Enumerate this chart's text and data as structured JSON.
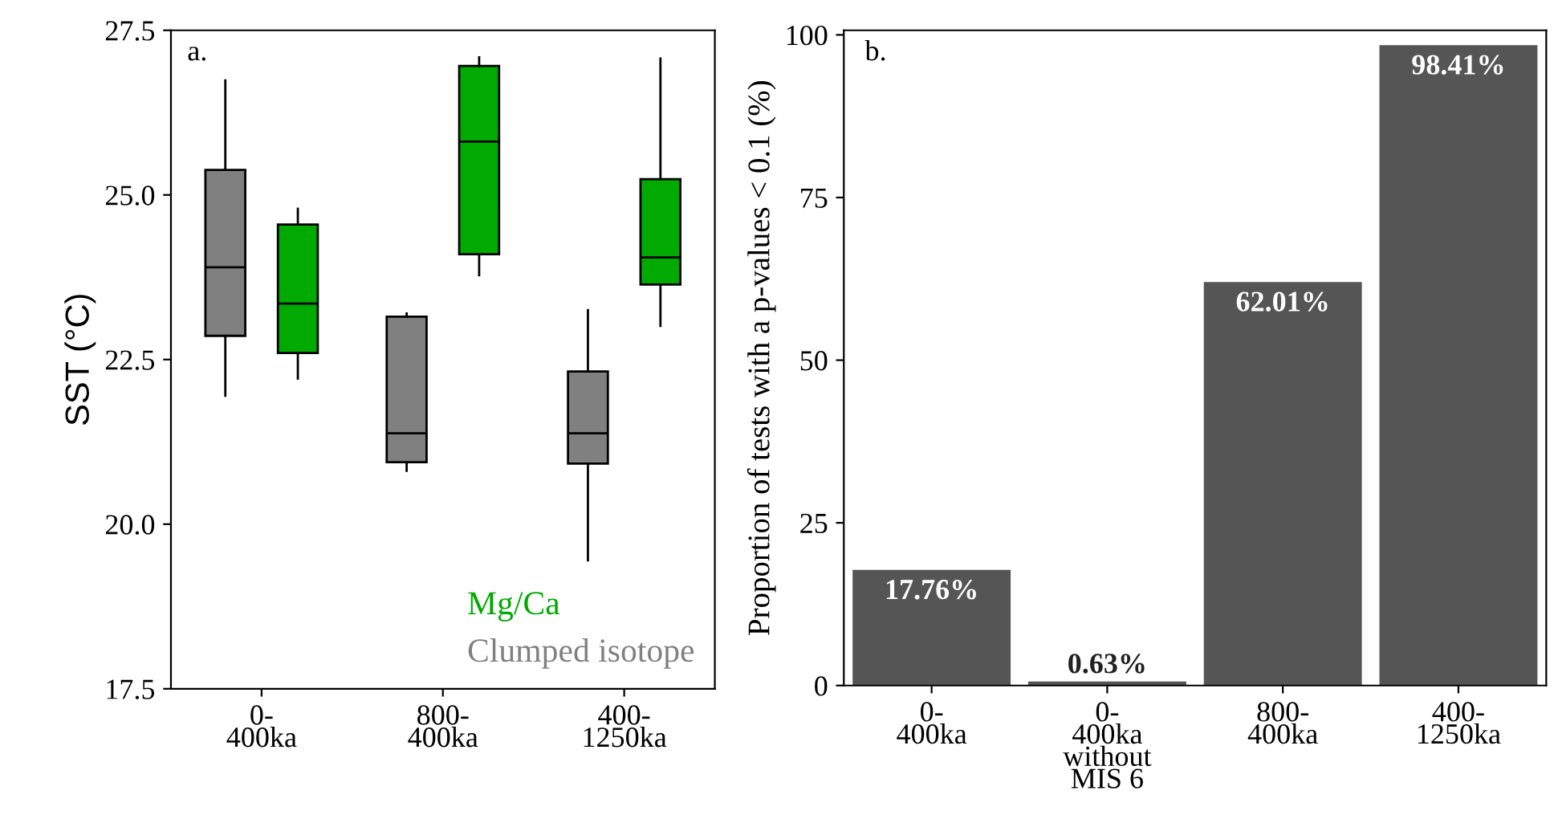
{
  "chart_data": [
    {
      "type": "box",
      "ylabel": "SST (°C)",
      "categories": [
        "0-\n400ka",
        "800-\n400ka",
        "400-\n1250ka"
      ],
      "ylim": [
        17.5,
        27.5
      ],
      "yticks": [
        {
          "value": 17.5,
          "label": "17.5"
        },
        {
          "value": 20,
          "label": "20.0"
        },
        {
          "value": 22.5,
          "label": "22.5"
        },
        {
          "value": 25,
          "label": "25.0"
        },
        {
          "value": 27.5,
          "label": "27.5"
        }
      ],
      "legend": "bottom right",
      "grid": false,
      "annotations": [
        "a."
      ],
      "series": [
        {
          "name": "Clumped isotope",
          "color": "#808080",
          "boxes": [
            {
              "low": 21.95,
              "q1": 22.86,
              "median": 23.9,
              "q3": 25.38,
              "high": 26.74
            },
            {
              "low": 20.81,
              "q1": 20.94,
              "median": 21.38,
              "q3": 23.15,
              "high": 23.2
            },
            {
              "low": 19.45,
              "q1": 20.92,
              "median": 21.38,
              "q3": 22.32,
              "high": 23.25
            }
          ]
        },
        {
          "name": "Mg/Ca",
          "color": "#00aa00",
          "boxes": [
            {
              "low": 22.21,
              "q1": 22.6,
              "median": 23.35,
              "q3": 24.55,
              "high": 24.79
            },
            {
              "low": 23.78,
              "q1": 24.1,
              "median": 25.81,
              "q3": 26.96,
              "high": 27.09
            },
            {
              "low": 23.01,
              "q1": 23.64,
              "median": 24.05,
              "q3": 25.24,
              "high": 27.07
            }
          ]
        }
      ]
    },
    {
      "type": "bar",
      "ylabel": "Proportion of tests with a p-values < 0.1 (%)",
      "categories": [
        "0-\n400ka",
        "0-\n400ka\nwithout\nMIS 6",
        "800-\n400ka",
        "400-\n1250ka"
      ],
      "values": [
        17.76,
        0.63,
        62.01,
        98.41
      ],
      "value_labels": [
        "17.76%",
        "0.63%",
        "62.01%",
        "98.41%"
      ],
      "color": "#555555",
      "ylim": [
        0,
        100.7
      ],
      "yticks": [
        0,
        25,
        50,
        75,
        100
      ],
      "grid": false,
      "annotations": [
        "b."
      ]
    }
  ]
}
